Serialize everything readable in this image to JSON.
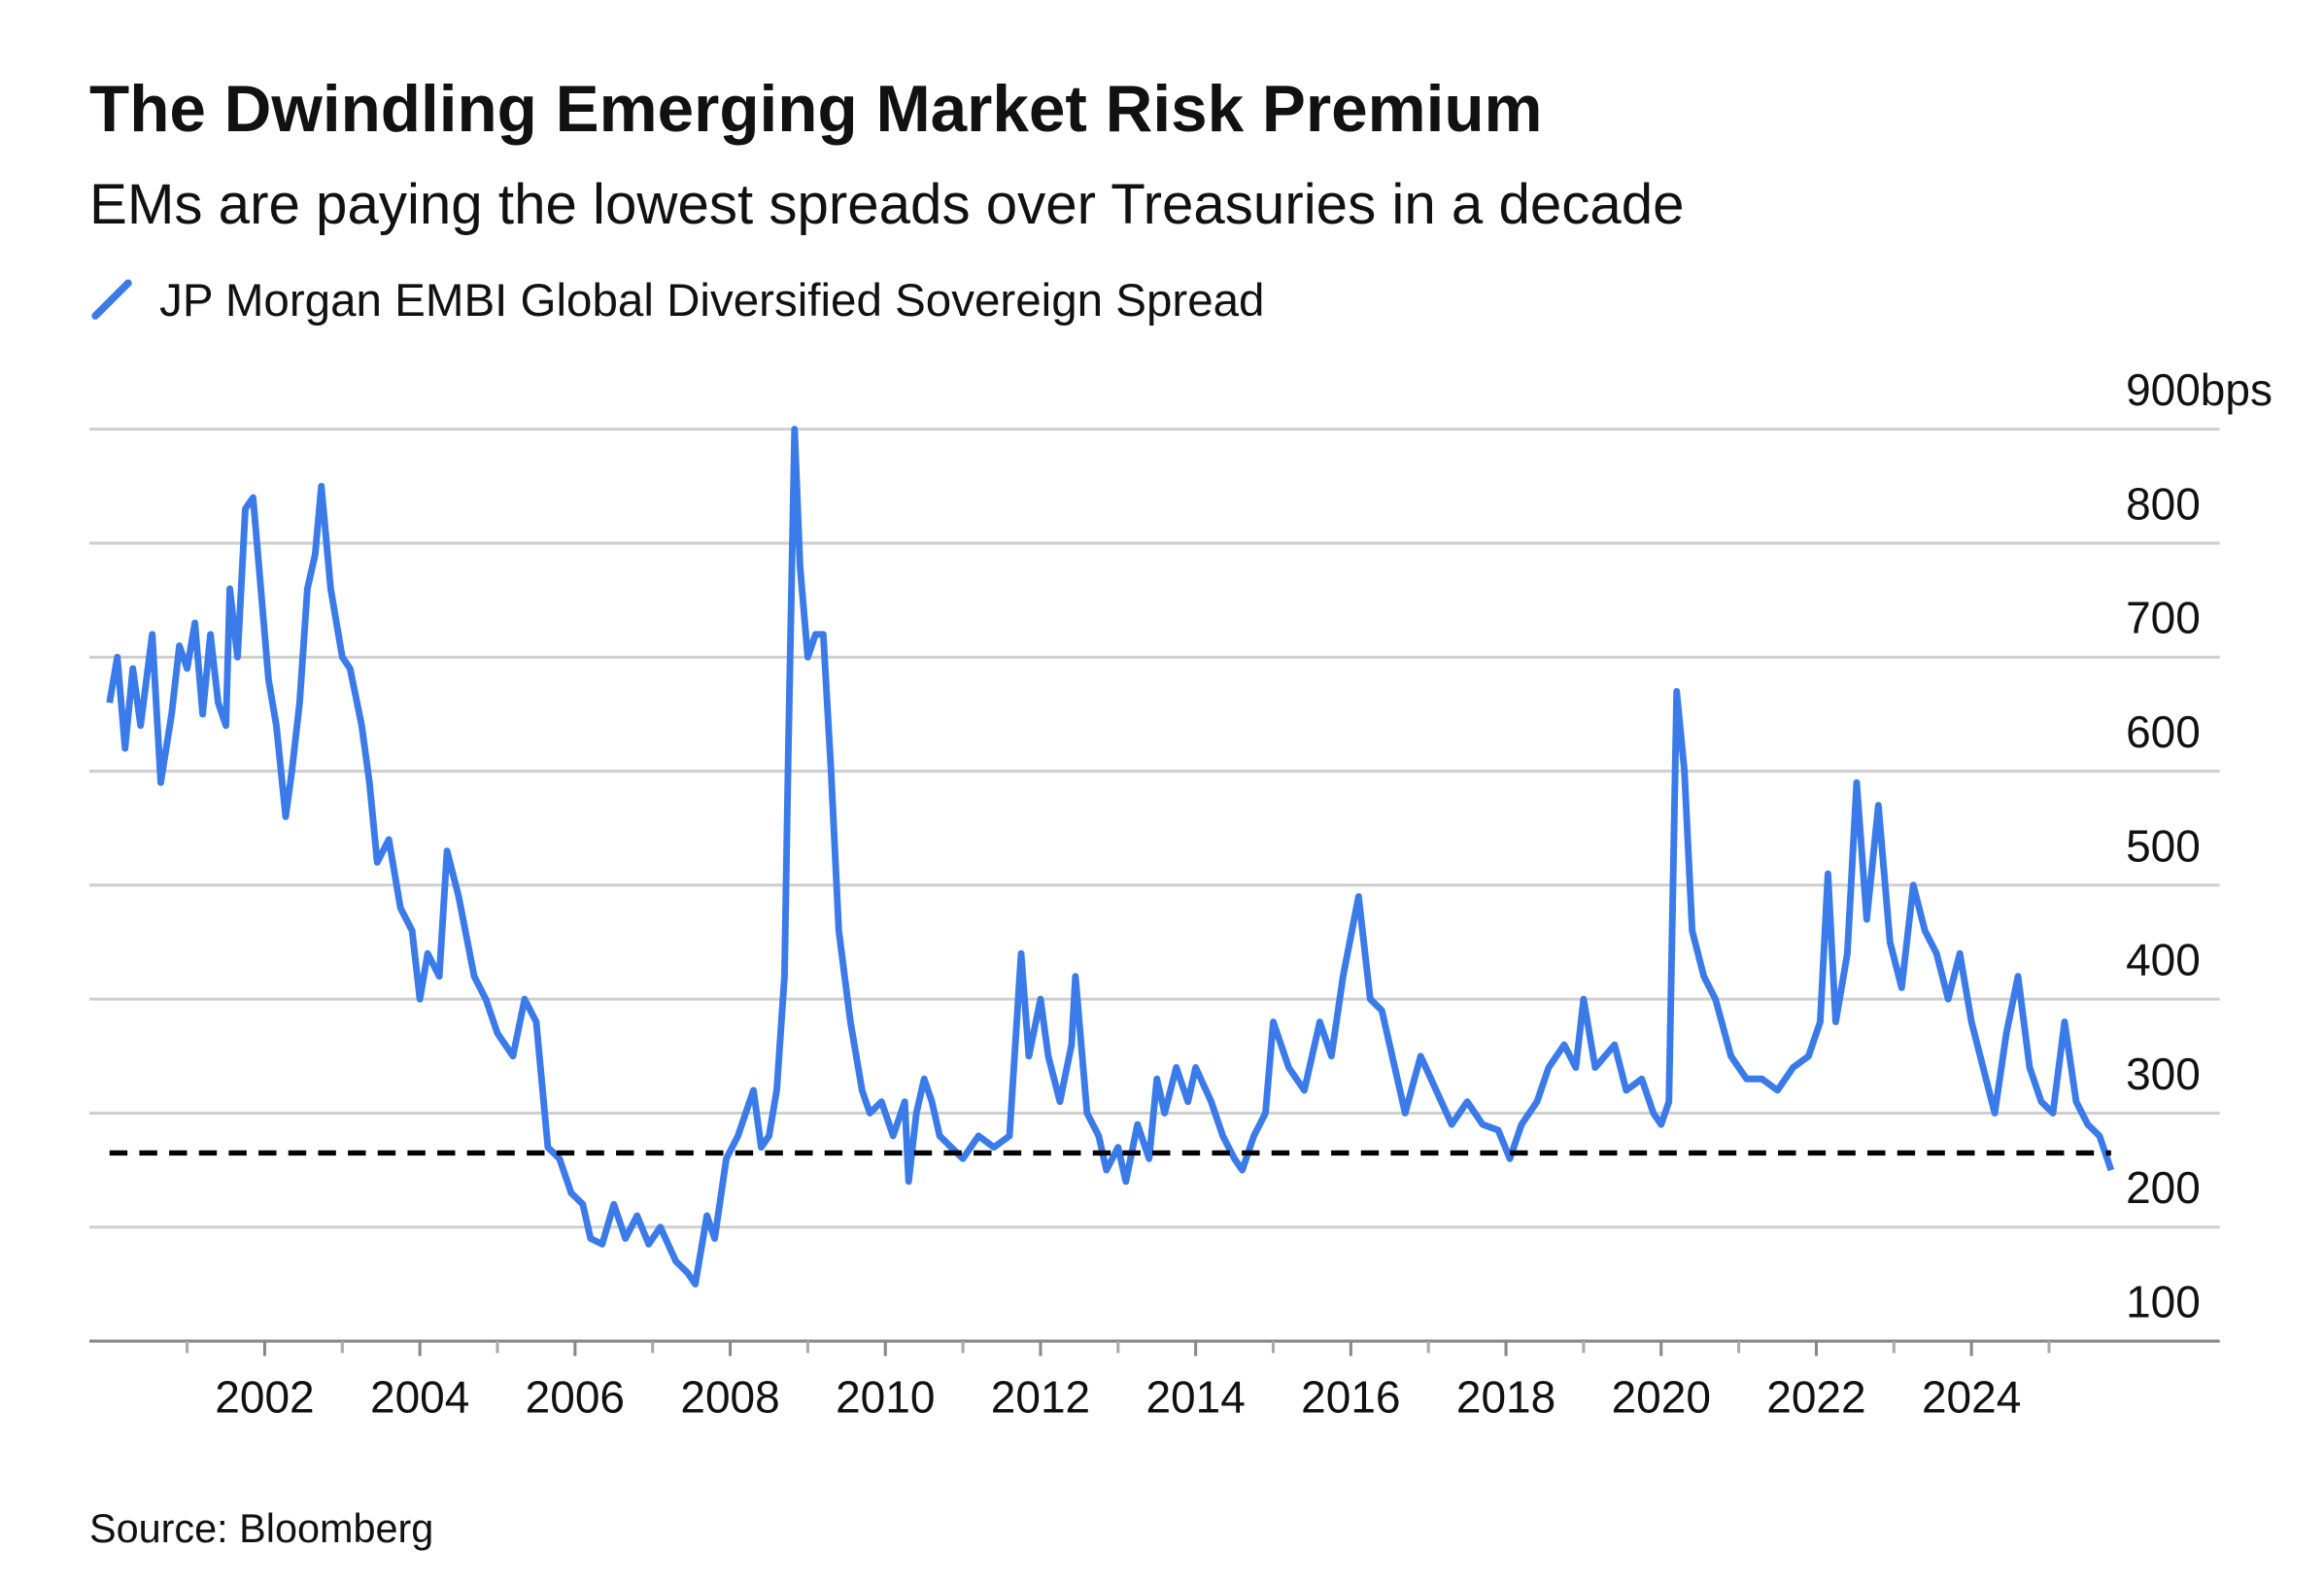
{
  "chart_data": {
    "type": "line",
    "title": "The Dwindling Emerging Market Risk Premium",
    "subtitle": "EMs are paying the lowest spreads over Treasuries in a decade",
    "source": "Source: Bloomberg",
    "series": [
      {
        "name": "JP Morgan EMBI Global Diversified Sovereign Spread",
        "color": "#3b7be9",
        "x": [
          2000.0,
          2000.1,
          2000.2,
          2000.3,
          2000.4,
          2000.55,
          2000.66,
          2000.8,
          2000.9,
          2001.0,
          2001.1,
          2001.2,
          2001.3,
          2001.4,
          2001.5,
          2001.55,
          2001.65,
          2001.75,
          2001.85,
          2001.95,
          2002.05,
          2002.15,
          2002.27,
          2002.35,
          2002.45,
          2002.55,
          2002.65,
          2002.73,
          2002.85,
          2003.0,
          2003.1,
          2003.25,
          2003.35,
          2003.45,
          2003.6,
          2003.75,
          2003.9,
          2004.0,
          2004.1,
          2004.25,
          2004.35,
          2004.5,
          2004.7,
          2004.85,
          2005.0,
          2005.2,
          2005.35,
          2005.5,
          2005.65,
          2005.8,
          2005.95,
          2006.1,
          2006.2,
          2006.35,
          2006.5,
          2006.65,
          2006.8,
          2006.95,
          2007.1,
          2007.3,
          2007.45,
          2007.55,
          2007.7,
          2007.8,
          2007.95,
          2008.1,
          2008.2,
          2008.3,
          2008.4,
          2008.5,
          2008.6,
          2008.7,
          2008.75,
          2008.83,
          2008.9,
          2009.0,
          2009.1,
          2009.2,
          2009.3,
          2009.4,
          2009.55,
          2009.7,
          2009.8,
          2009.95,
          2010.1,
          2010.25,
          2010.3,
          2010.4,
          2010.5,
          2010.6,
          2010.7,
          2010.85,
          2011.0,
          2011.2,
          2011.4,
          2011.6,
          2011.75,
          2011.85,
          2012.0,
          2012.1,
          2012.25,
          2012.4,
          2012.45,
          2012.6,
          2012.75,
          2012.85,
          2013.0,
          2013.1,
          2013.25,
          2013.4,
          2013.5,
          2013.6,
          2013.75,
          2013.9,
          2014.0,
          2014.2,
          2014.35,
          2014.5,
          2014.6,
          2014.75,
          2014.9,
          2015.0,
          2015.2,
          2015.4,
          2015.6,
          2015.75,
          2015.9,
          2016.1,
          2016.25,
          2016.4,
          2016.5,
          2016.7,
          2016.9,
          2017.1,
          2017.3,
          2017.5,
          2017.7,
          2017.9,
          2018.05,
          2018.2,
          2018.4,
          2018.55,
          2018.75,
          2018.9,
          2019.0,
          2019.15,
          2019.4,
          2019.55,
          2019.75,
          2019.9,
          2020.0,
          2020.1,
          2020.2,
          2020.3,
          2020.4,
          2020.55,
          2020.7,
          2020.9,
          2021.1,
          2021.3,
          2021.5,
          2021.7,
          2021.9,
          2022.05,
          2022.15,
          2022.25,
          2022.4,
          2022.52,
          2022.65,
          2022.8,
          2022.95,
          2023.1,
          2023.25,
          2023.4,
          2023.55,
          2023.7,
          2023.85,
          2024.0,
          2024.15,
          2024.3,
          2024.45,
          2024.6,
          2024.75,
          2024.9,
          2025.05,
          2025.2,
          2025.35,
          2025.5,
          2025.65,
          2025.8
        ],
        "values": [
          660,
          700,
          620,
          690,
          640,
          720,
          590,
          650,
          710,
          690,
          730,
          650,
          720,
          660,
          640,
          760,
          700,
          830,
          840,
          760,
          680,
          640,
          560,
          600,
          660,
          760,
          790,
          850,
          760,
          700,
          690,
          640,
          590,
          520,
          540,
          480,
          460,
          400,
          440,
          420,
          530,
          490,
          420,
          400,
          370,
          350,
          400,
          380,
          270,
          260,
          230,
          220,
          190,
          185,
          220,
          190,
          210,
          185,
          200,
          170,
          160,
          150,
          210,
          190,
          260,
          280,
          300,
          320,
          270,
          280,
          320,
          420,
          620,
          900,
          780,
          700,
          720,
          720,
          600,
          460,
          380,
          320,
          300,
          310,
          280,
          310,
          240,
          300,
          330,
          310,
          280,
          270,
          260,
          280,
          270,
          280,
          440,
          350,
          400,
          350,
          310,
          360,
          420,
          300,
          280,
          250,
          270,
          240,
          290,
          260,
          330,
          300,
          340,
          310,
          340,
          310,
          280,
          260,
          250,
          280,
          300,
          380,
          340,
          320,
          380,
          350,
          420,
          490,
          400,
          390,
          360,
          300,
          350,
          320,
          290,
          310,
          290,
          285,
          260,
          290,
          310,
          340,
          360,
          340,
          400,
          340,
          360,
          320,
          330,
          300,
          290,
          310,
          670,
          600,
          460,
          420,
          400,
          350,
          330,
          330,
          320,
          340,
          350,
          380,
          510,
          380,
          440,
          590,
          470,
          570,
          450,
          410,
          500,
          460,
          440,
          400,
          440,
          380,
          340,
          300,
          370,
          420,
          340,
          310,
          300,
          380,
          310,
          290,
          280,
          250
        ]
      }
    ],
    "reference_line": {
      "value": 265,
      "color": "#000000",
      "dashed": true
    },
    "xlim": [
      1999.74,
      2027.2
    ],
    "xticks": [
      2002,
      2004,
      2006,
      2008,
      2010,
      2012,
      2014,
      2016,
      2018,
      2020,
      2022,
      2024
    ],
    "xminorticks": [
      2001,
      2003,
      2005,
      2007,
      2009,
      2011,
      2013,
      2015,
      2017,
      2019,
      2021,
      2023,
      2025
    ],
    "ylim": [
      100,
      900
    ],
    "yticks": [
      100,
      200,
      300,
      400,
      500,
      600,
      700,
      800,
      {
        "value": 900,
        "label": "900bps"
      }
    ],
    "grid": true
  }
}
